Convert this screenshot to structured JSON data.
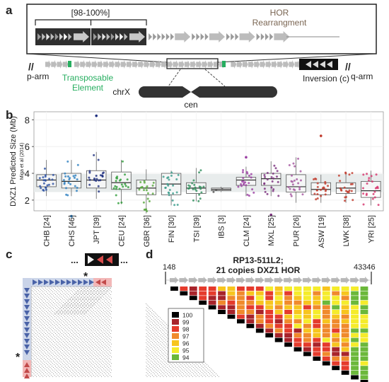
{
  "panel_a": {
    "letter": "a",
    "bracket_label": "[98-100%]",
    "hor_label_line1": "HOR",
    "hor_label_line2": "Rearrangment",
    "p_arm": "p-arm",
    "q_arm": "q-arm",
    "te_line1": "Transposable",
    "te_line2": "Element",
    "inversion": "Inversion (c)",
    "chrx": "chrX",
    "cen": "cen",
    "colors": {
      "te": "#27ae60",
      "dark_block": "#2f2f2f",
      "arrow": "#b5b5b5"
    }
  },
  "panel_b": {
    "letter": "b",
    "ylabel": "DXZ1 Predicted Size (Mb)",
    "ylabel_sub": "Miga et al (2014)",
    "yticks": [
      "2",
      "4",
      "6",
      "8"
    ]
  },
  "chart_data": {
    "type": "box",
    "ylim": [
      1.2,
      8.6
    ],
    "categories": [
      "CHB [24]",
      "CHS [46]",
      "JPT [39]",
      "CEU [24]",
      "GBR [36]",
      "FIN [30]",
      "TSI [39]",
      "IBS [3]",
      "CLM [24]",
      "MXL [25]",
      "PUR [26]",
      "ASW [19]",
      "LWK [38]",
      "YRI [25]"
    ],
    "colors": [
      "#2b50a3",
      "#2d7fc1",
      "#1e2f80",
      "#2f9e3a",
      "#58a83d",
      "#3b9c8c",
      "#2f8f5c",
      "#555555",
      "#9b3fa3",
      "#7b2f7e",
      "#a4559f",
      "#c0392b",
      "#c0392b",
      "#d6336c"
    ],
    "series": [
      {
        "q1": 3.0,
        "median": 3.5,
        "q3": 3.9,
        "min": 2.3,
        "max": 5.0,
        "outliers": []
      },
      {
        "q1": 2.9,
        "median": 3.4,
        "q3": 4.0,
        "min": 2.3,
        "max": 5.0,
        "outliers": [
          0.8
        ]
      },
      {
        "q1": 2.9,
        "median": 3.5,
        "q3": 4.2,
        "min": 2.1,
        "max": 5.6,
        "outliers": [
          8.3
        ]
      },
      {
        "q1": 2.8,
        "median": 3.3,
        "q3": 4.1,
        "min": 1.7,
        "max": 5.0,
        "outliers": []
      },
      {
        "q1": 2.4,
        "median": 2.9,
        "q3": 3.5,
        "min": 1.0,
        "max": 4.3,
        "outliers": []
      },
      {
        "q1": 2.4,
        "median": 3.2,
        "q3": 4.0,
        "min": 1.6,
        "max": 4.2,
        "outliers": []
      },
      {
        "q1": 2.5,
        "median": 2.9,
        "q3": 3.3,
        "min": 1.9,
        "max": 4.4,
        "outliers": []
      },
      {
        "q1": 2.7,
        "median": 2.8,
        "q3": 2.9,
        "min": 2.6,
        "max": 3.0,
        "outliers": []
      },
      {
        "q1": 3.1,
        "median": 3.5,
        "q3": 3.7,
        "min": 2.3,
        "max": 4.5,
        "outliers": [
          5.2
        ]
      },
      {
        "q1": 3.1,
        "median": 3.6,
        "q3": 4.0,
        "min": 2.3,
        "max": 4.9,
        "outliers": [
          0.9
        ]
      },
      {
        "q1": 2.6,
        "median": 3.0,
        "q3": 3.9,
        "min": 1.8,
        "max": 5.2,
        "outliers": []
      },
      {
        "q1": 2.4,
        "median": 2.8,
        "q3": 3.3,
        "min": 1.8,
        "max": 3.9,
        "outliers": [
          6.8
        ]
      },
      {
        "q1": 2.5,
        "median": 2.9,
        "q3": 3.3,
        "min": 1.8,
        "max": 4.1,
        "outliers": []
      },
      {
        "q1": 2.2,
        "median": 2.7,
        "q3": 3.4,
        "min": 1.6,
        "max": 4.2,
        "outliers": []
      }
    ]
  },
  "panel_c": {
    "letter": "c",
    "star": "*",
    "dots": "..."
  },
  "panel_d": {
    "letter": "d",
    "left_coord": "148",
    "right_coord": "43346",
    "title_line1": "RP13-511L2;",
    "title_line2": "21 copies DXZ1 HOR",
    "copies": 21,
    "legend": [
      {
        "label": "100",
        "color": "#000000"
      },
      {
        "label": "99",
        "color": "#a8242b"
      },
      {
        "label": "98",
        "color": "#e53b2c"
      },
      {
        "label": "97",
        "color": "#f08a2c"
      },
      {
        "label": "96",
        "color": "#f7c51e"
      },
      {
        "label": "95",
        "color": "#f5ec2b"
      },
      {
        "label": "94",
        "color": "#6bb83a"
      }
    ]
  }
}
